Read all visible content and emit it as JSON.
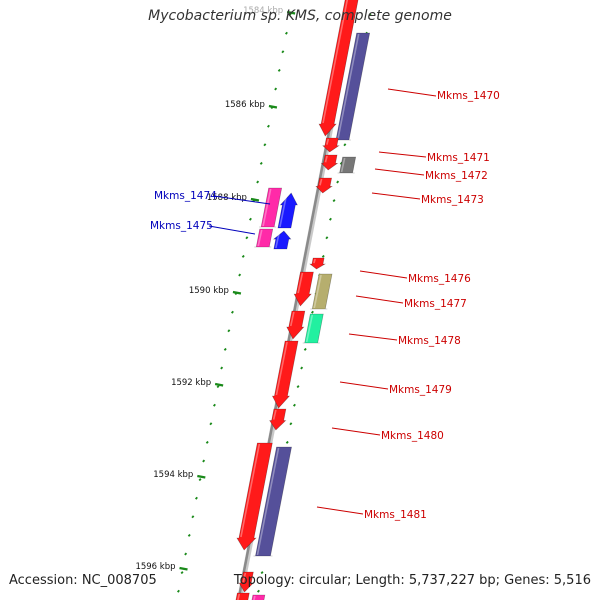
{
  "title": "Mycobacterium sp. KMS, complete genome",
  "footer": {
    "accession": "Accession: NC_008705",
    "summary": "Topology: circular; Length: 5,737,227 bp; Genes: 5,516"
  },
  "colors": {
    "backbone": "#8a8a8a",
    "tick": "#1a8a1a",
    "forward_label": "#cc0000",
    "reverse_label": "#0000bb",
    "gene_red": "#ff1a1a",
    "partner_purple": "#55509a",
    "partner_gray": "#777777",
    "partner_olive": "#b6ae6e",
    "partner_teal": "#22f0a0",
    "partner_magenta": "#ff2aa8",
    "partner_blue": "#1a1aff"
  },
  "axis": {
    "labels": [
      "1584 kbp",
      "1586 kbp",
      "1588 kbp",
      "1590 kbp",
      "1592 kbp",
      "1594 kbp",
      "1596 kbp"
    ]
  },
  "genes": [
    {
      "id": "Mkms_1470",
      "strand": "forward"
    },
    {
      "id": "Mkms_1471",
      "strand": "forward"
    },
    {
      "id": "Mkms_1472",
      "strand": "forward"
    },
    {
      "id": "Mkms_1473",
      "strand": "forward"
    },
    {
      "id": "Mkms_1474",
      "strand": "reverse"
    },
    {
      "id": "Mkms_1475",
      "strand": "reverse"
    },
    {
      "id": "Mkms_1476",
      "strand": "forward"
    },
    {
      "id": "Mkms_1477",
      "strand": "forward"
    },
    {
      "id": "Mkms_1478",
      "strand": "forward"
    },
    {
      "id": "Mkms_1479",
      "strand": "forward"
    },
    {
      "id": "Mkms_1480",
      "strand": "forward"
    },
    {
      "id": "Mkms_1481",
      "strand": "forward"
    }
  ]
}
